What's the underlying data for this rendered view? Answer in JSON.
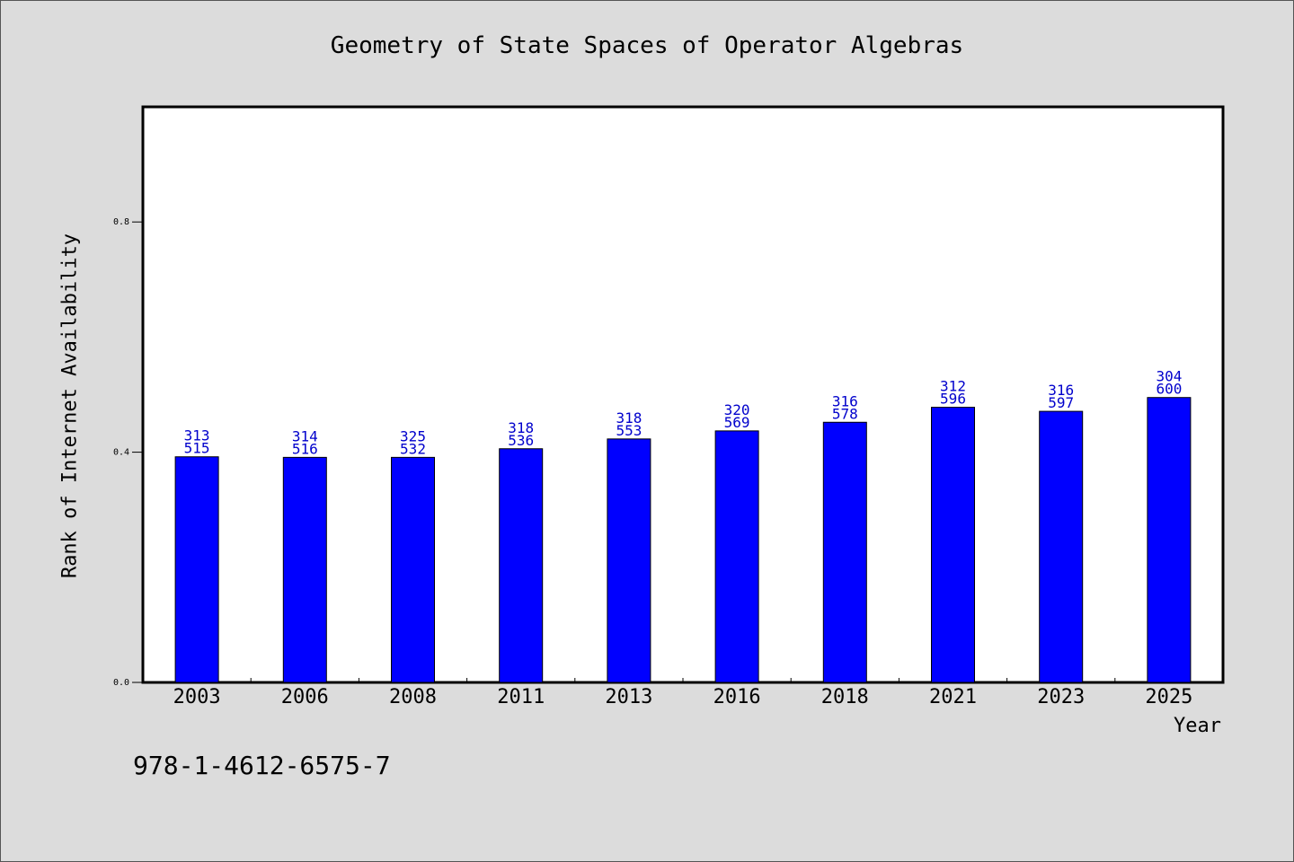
{
  "chart_data": {
    "type": "bar",
    "title": "Geometry of State Spaces of Operator Algebras",
    "xlabel": "Year",
    "ylabel": "Rank of Internet Availability",
    "categories": [
      "2003",
      "2006",
      "2008",
      "2011",
      "2013",
      "2016",
      "2018",
      "2021",
      "2023",
      "2025"
    ],
    "values": [
      0.392,
      0.391,
      0.391,
      0.406,
      0.423,
      0.437,
      0.452,
      0.478,
      0.471,
      0.495
    ],
    "bar_labels": [
      [
        "313",
        "515"
      ],
      [
        "314",
        "516"
      ],
      [
        "325",
        "532"
      ],
      [
        "318",
        "536"
      ],
      [
        "318",
        "553"
      ],
      [
        "320",
        "569"
      ],
      [
        "316",
        "578"
      ],
      [
        "312",
        "596"
      ],
      [
        "316",
        "597"
      ],
      [
        "304",
        "600"
      ]
    ],
    "ylim": [
      0,
      1.0
    ],
    "yticks": [
      0.0,
      0.4,
      0.8
    ],
    "ytick_labels": [
      "0.0",
      "0.4",
      "0.8"
    ],
    "grid": false,
    "bar_color": "#0000ff",
    "label_color": "#0000cc"
  },
  "footer": {
    "isbn": "978-1-4612-6575-7"
  }
}
